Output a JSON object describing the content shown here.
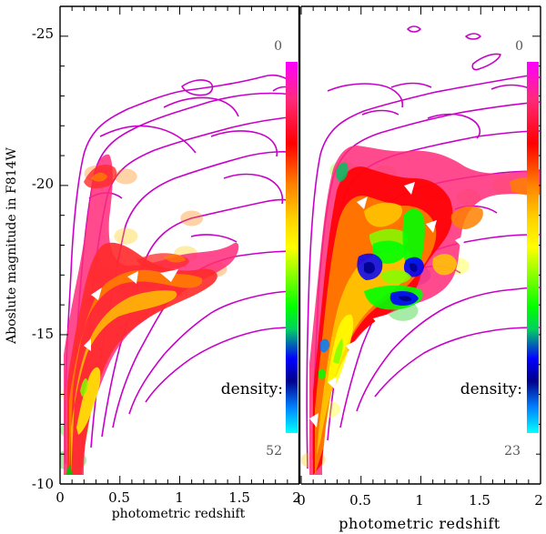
{
  "chart_data": [
    {
      "type": "contour",
      "panel": "left",
      "ylabel": "Aboslute magnitude in F814W",
      "xlabel": "photometric redshift",
      "xlim": [
        0,
        2
      ],
      "ylim": [
        -10,
        -26
      ],
      "x_ticks": [
        "0",
        "0.5",
        "1",
        "1.5",
        "2"
      ],
      "y_ticks": [
        "-25",
        "-20",
        "-15",
        "-10"
      ],
      "colorbar": {
        "top_label": "0",
        "bottom_label": "52",
        "title": "density:"
      },
      "density_blobs": [
        {
          "x": 0.09,
          "y": -10.8,
          "level": 0.9
        },
        {
          "x": 0.12,
          "y": -11.8,
          "level": 0.7
        },
        {
          "x": 0.12,
          "y": -13.0,
          "level": 0.55
        },
        {
          "x": 0.2,
          "y": -13.8,
          "level": 0.6
        },
        {
          "x": 0.22,
          "y": -15.0,
          "level": 0.45
        },
        {
          "x": 0.3,
          "y": -16.0,
          "level": 0.42
        },
        {
          "x": 0.35,
          "y": -17.0,
          "level": 0.48
        },
        {
          "x": 0.55,
          "y": -16.6,
          "level": 0.46
        },
        {
          "x": 0.75,
          "y": -16.9,
          "level": 0.5
        },
        {
          "x": 0.95,
          "y": -16.5,
          "level": 0.44
        },
        {
          "x": 1.05,
          "y": -17.7,
          "level": 0.4
        },
        {
          "x": 0.55,
          "y": -18.3,
          "level": 0.38
        },
        {
          "x": 0.3,
          "y": -20.4,
          "level": 0.36
        },
        {
          "x": 0.55,
          "y": -20.3,
          "level": 0.3
        },
        {
          "x": 1.1,
          "y": -18.9,
          "level": 0.3
        },
        {
          "x": 1.3,
          "y": -17.2,
          "level": 0.32
        }
      ]
    },
    {
      "type": "contour",
      "panel": "right",
      "xlabel": "photometric redshift",
      "xlim": [
        0,
        2
      ],
      "ylim": [
        -10,
        -26
      ],
      "x_ticks": [
        "0",
        "0.5",
        "1",
        "1.5",
        "2"
      ],
      "colorbar": {
        "top_label": "0",
        "bottom_label": "23",
        "title": "density:"
      },
      "density_blobs": [
        {
          "x": 0.1,
          "y": -10.8,
          "level": 0.45
        },
        {
          "x": 0.22,
          "y": -12.5,
          "level": 0.5
        },
        {
          "x": 0.25,
          "y": -14.2,
          "level": 0.62
        },
        {
          "x": 0.3,
          "y": -15.5,
          "level": 0.55
        },
        {
          "x": 0.35,
          "y": -17.2,
          "level": 0.6
        },
        {
          "x": 0.35,
          "y": -20.5,
          "level": 0.6
        },
        {
          "x": 0.6,
          "y": -17.5,
          "level": 0.72
        },
        {
          "x": 0.75,
          "y": -16.8,
          "level": 0.9
        },
        {
          "x": 0.95,
          "y": -17.0,
          "level": 0.92
        },
        {
          "x": 0.85,
          "y": -15.8,
          "level": 0.84
        },
        {
          "x": 0.95,
          "y": -18.3,
          "level": 0.58
        },
        {
          "x": 1.3,
          "y": -17.3,
          "level": 0.5
        },
        {
          "x": 1.4,
          "y": -19.6,
          "level": 0.4
        },
        {
          "x": 1.7,
          "y": -20.0,
          "level": 0.5
        },
        {
          "x": 0.7,
          "y": -20.4,
          "level": 0.38
        },
        {
          "x": 1.1,
          "y": -19.7,
          "level": 0.33
        }
      ]
    }
  ],
  "colors": {
    "contour_line": "#c800c8",
    "colormap": [
      "#ff00ff",
      "#ff2a7a",
      "#ff0000",
      "#ff8000",
      "#ffc800",
      "#ffff00",
      "#80ff00",
      "#00ff00",
      "#00c800",
      "#0000ff",
      "#00008b",
      "#00ffff"
    ]
  }
}
